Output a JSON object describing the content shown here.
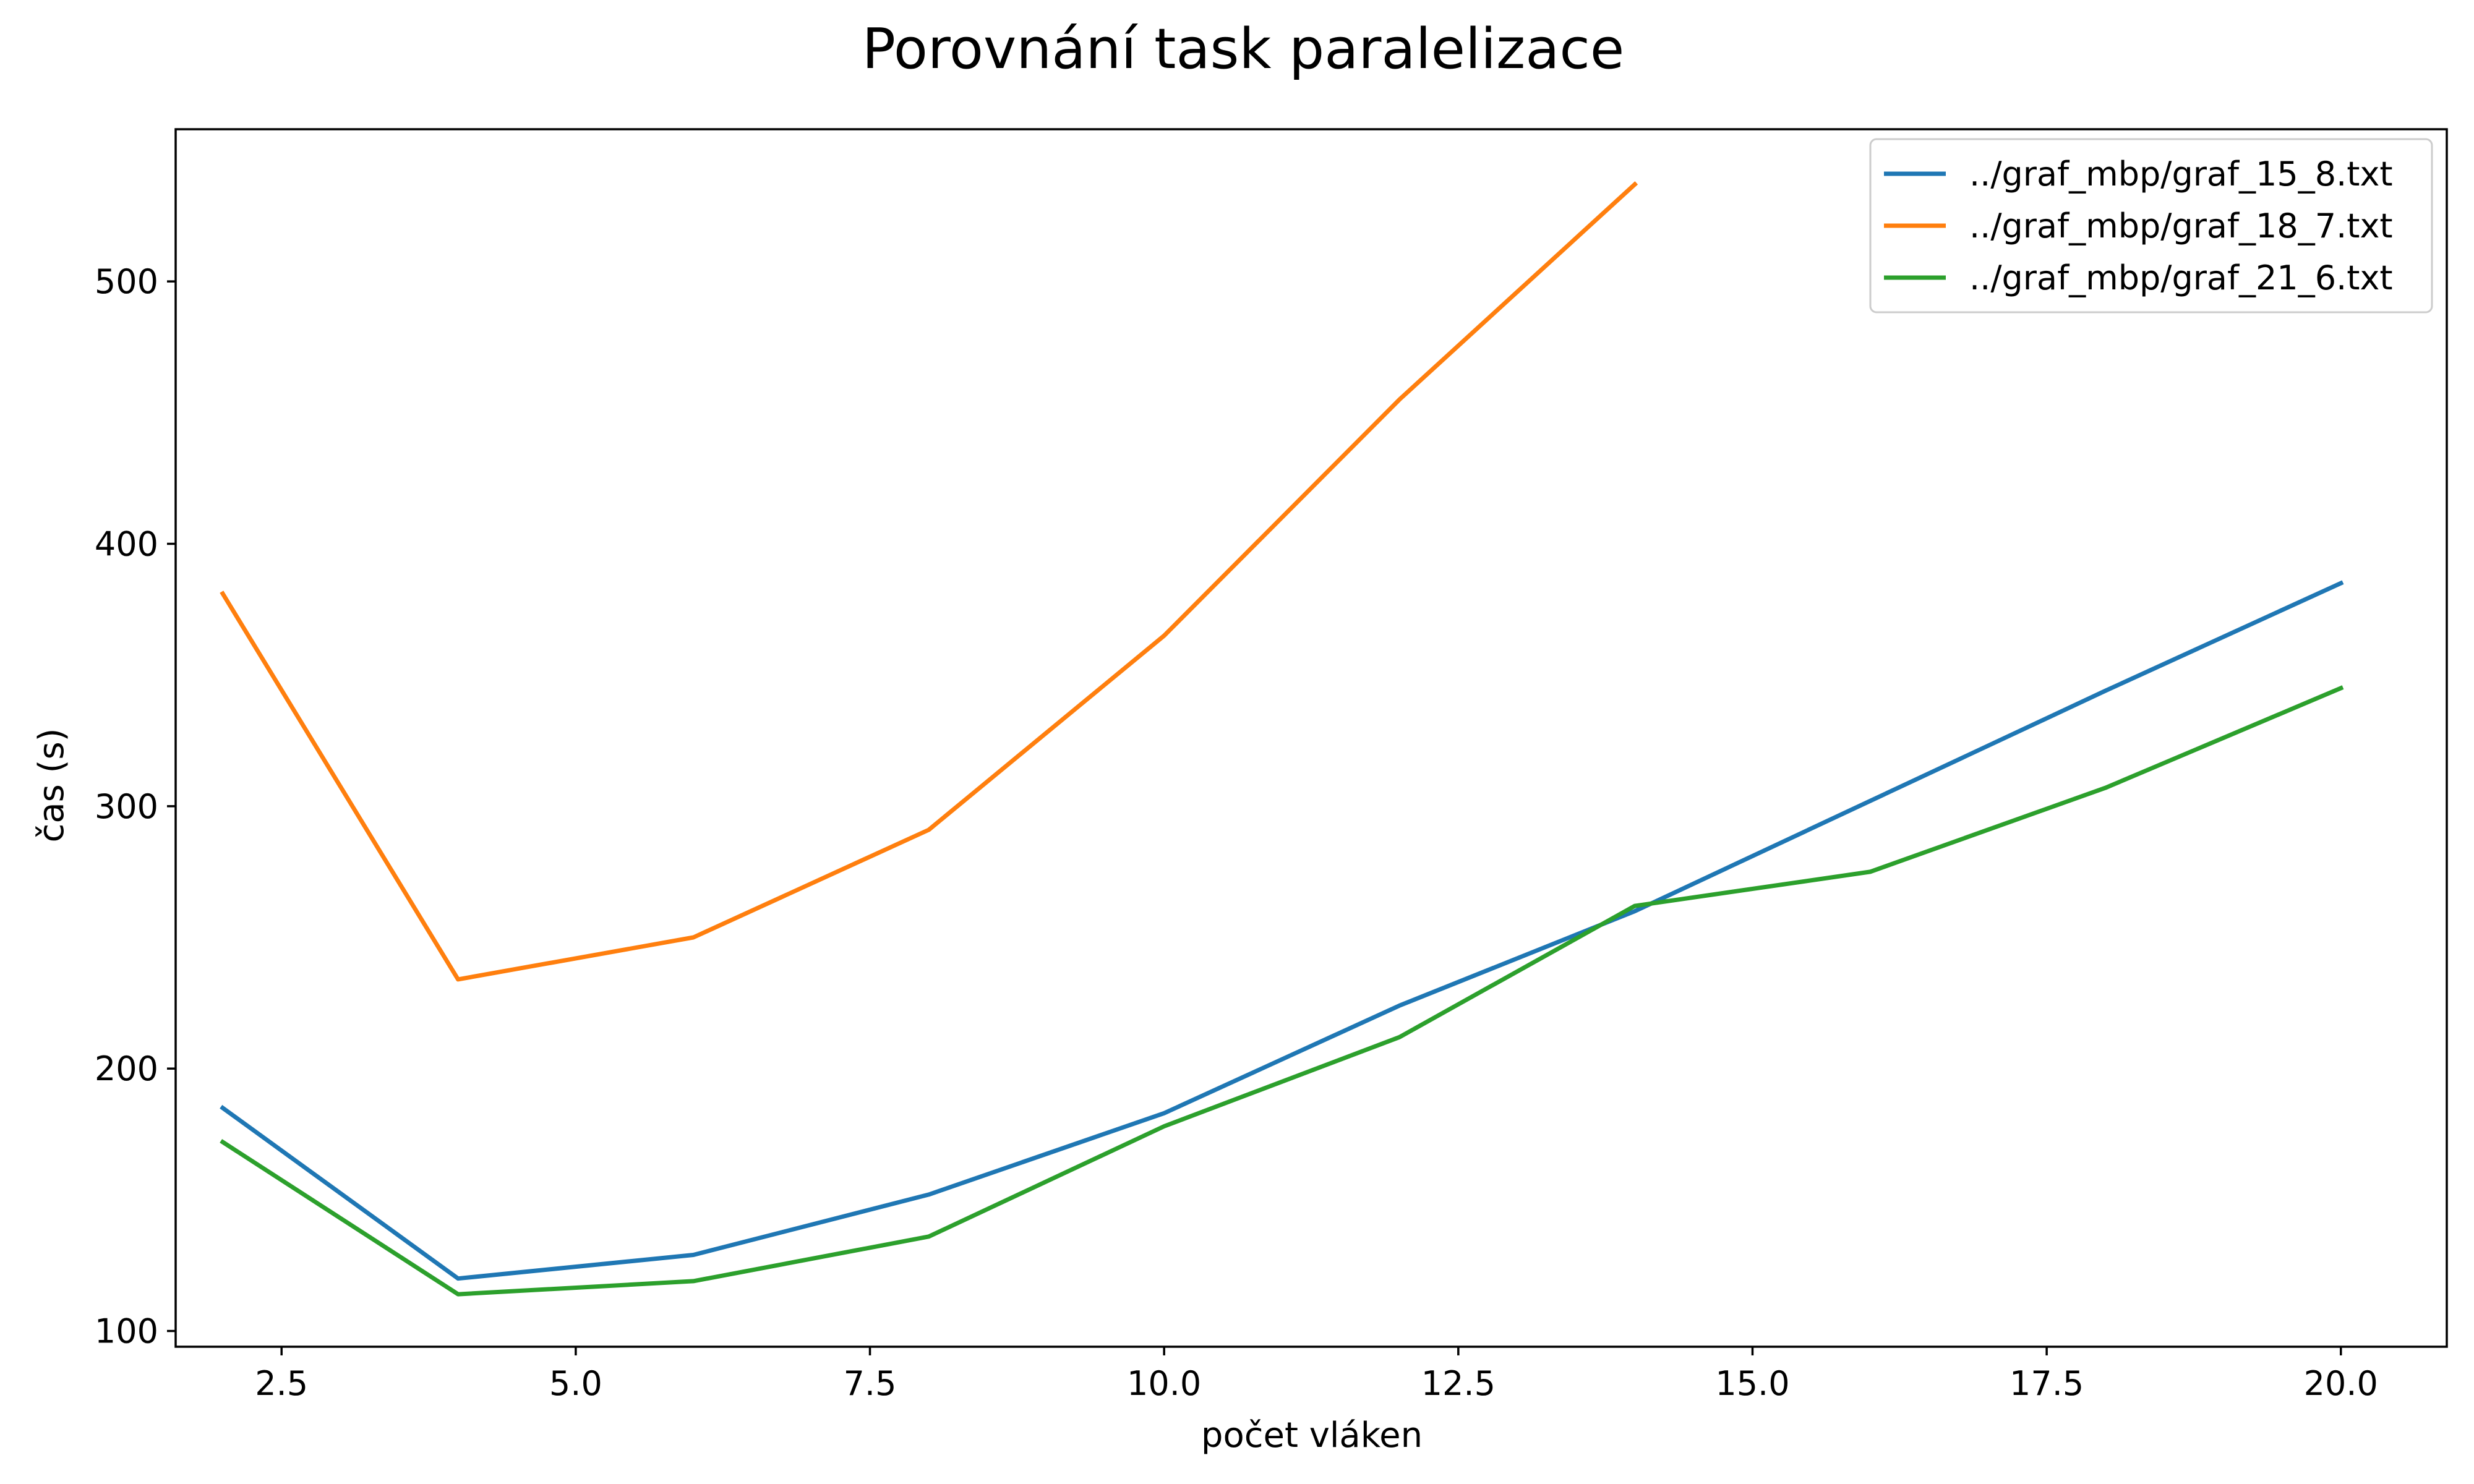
{
  "chart_data": {
    "type": "line",
    "title": "Porovnání task paralelizace",
    "xlabel": "počet vláken",
    "ylabel": "čas (s)",
    "xlim": [
      1.6,
      20.9
    ],
    "ylim": [
      94,
      558
    ],
    "xticks": [
      2.5,
      5.0,
      7.5,
      10.0,
      12.5,
      15.0,
      17.5,
      20.0
    ],
    "xtick_labels": [
      "2.5",
      "5.0",
      "7.5",
      "10.0",
      "12.5",
      "15.0",
      "17.5",
      "20.0"
    ],
    "yticks": [
      100,
      200,
      300,
      400,
      500
    ],
    "ytick_labels": [
      "100",
      "200",
      "300",
      "400",
      "500"
    ],
    "grid": false,
    "legend_position": "top-right",
    "series": [
      {
        "name": "../graf_mbp/graf_15_8.txt",
        "color": "#1f77b4",
        "x": [
          2,
          4,
          6,
          8,
          10,
          12,
          14,
          16,
          18,
          20
        ],
        "y": [
          185,
          120,
          129,
          152,
          183,
          224,
          260,
          302,
          344,
          385
        ]
      },
      {
        "name": "../graf_mbp/graf_18_7.txt",
        "color": "#ff7f0e",
        "x": [
          2,
          4,
          6,
          8,
          10,
          12,
          14
        ],
        "y": [
          381,
          234,
          250,
          291,
          365,
          455,
          537
        ]
      },
      {
        "name": "../graf_mbp/graf_21_6.txt",
        "color": "#2ca02c",
        "x": [
          2,
          4,
          6,
          8,
          10,
          12,
          14,
          16,
          18,
          20
        ],
        "y": [
          172,
          114,
          119,
          136,
          178,
          212,
          262,
          275,
          307,
          345
        ]
      }
    ]
  }
}
